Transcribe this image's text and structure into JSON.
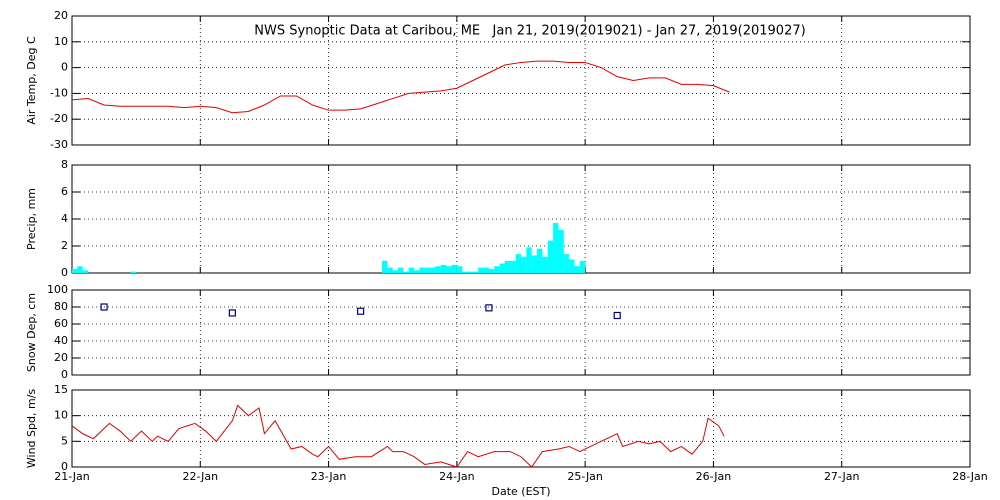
{
  "chart_data": [
    {
      "type": "line",
      "title": "NWS Synoptic Data at Caribou, ME   Jan 21, 2019(2019021) - Jan 27, 2019(2019027)",
      "ylabel": "Air Temp, Deg C",
      "color": "#e00000",
      "x": [
        0,
        3,
        6,
        9,
        12,
        15,
        18,
        21,
        24,
        27,
        30,
        33,
        36,
        39,
        42,
        45,
        48,
        51,
        54,
        57,
        60,
        63,
        66,
        69,
        72,
        75,
        78,
        81,
        84,
        87,
        90,
        93,
        96,
        99,
        102,
        105,
        108,
        111,
        114,
        117,
        120,
        123
      ],
      "values": [
        -12.5,
        -12,
        -14.5,
        -15,
        -15,
        -15,
        -15,
        -15.5,
        -15,
        -15.5,
        -17.5,
        -17,
        -14.5,
        -11,
        -11,
        -14.5,
        -16.5,
        -16.5,
        -16,
        -14,
        -12,
        -10,
        -9.5,
        -9,
        -8,
        -5,
        -2,
        1,
        2,
        2.5,
        2.5,
        2,
        2,
        0,
        -3.5,
        -5,
        -4,
        -4,
        -6.5,
        -6.5,
        -7,
        -9.5
      ],
      "xlim": [
        0,
        168
      ],
      "xticks": [
        0,
        24,
        48,
        72,
        96,
        120,
        144,
        168
      ],
      "ylim": [
        -30,
        20
      ],
      "yticks": [
        -30,
        -20,
        -10,
        0,
        10,
        20
      ],
      "grid": true
    },
    {
      "type": "bar",
      "ylabel": "Precip, mm",
      "color": "#00ffff",
      "x": [
        0,
        1,
        2,
        11,
        58,
        59,
        60,
        61,
        62,
        63,
        64,
        65,
        66,
        67,
        68,
        69,
        70,
        71,
        72,
        73,
        74,
        75,
        76,
        77,
        78,
        79,
        80,
        81,
        82,
        83,
        84,
        85,
        86,
        87,
        88,
        89,
        90,
        91,
        92,
        93,
        94,
        95
      ],
      "values": [
        0.3,
        0.5,
        0.2,
        0.1,
        0.9,
        0.4,
        0.2,
        0.4,
        0.1,
        0.4,
        0.2,
        0.4,
        0.4,
        0.4,
        0.5,
        0.6,
        0.5,
        0.6,
        0.5,
        0.1,
        0.1,
        0.1,
        0.4,
        0.4,
        0.3,
        0.5,
        0.7,
        0.9,
        0.9,
        1.4,
        1.2,
        1.9,
        1.3,
        1.8,
        1.2,
        2.4,
        3.7,
        3.2,
        1.4,
        1.0,
        0.5,
        0.9
      ],
      "xlim": [
        0,
        168
      ],
      "xticks": [
        0,
        24,
        48,
        72,
        96,
        120,
        144,
        168
      ],
      "ylim": [
        0,
        8
      ],
      "yticks": [
        0,
        2,
        4,
        6,
        8
      ],
      "grid": true
    },
    {
      "type": "scatter",
      "ylabel": "Snow Dep, cm",
      "color": "#000080",
      "x": [
        6,
        30,
        54,
        78,
        102
      ],
      "values": [
        80,
        73,
        75,
        79,
        70
      ],
      "xlim": [
        0,
        168
      ],
      "xticks": [
        0,
        24,
        48,
        72,
        96,
        120,
        144,
        168
      ],
      "ylim": [
        0,
        100
      ],
      "yticks": [
        0,
        20,
        40,
        60,
        80,
        100
      ],
      "grid": true
    },
    {
      "type": "line",
      "ylabel": "Wind Spd, m/s",
      "xlabel": "Date (EST)",
      "color": "#e00000",
      "x": [
        0,
        2,
        4,
        7,
        9,
        11,
        13,
        15,
        16,
        18,
        20,
        23,
        25,
        27,
        30,
        31,
        33,
        35,
        36,
        38,
        41,
        43,
        45,
        46,
        48,
        50,
        53,
        56,
        59,
        60,
        62,
        64,
        66,
        69,
        72,
        74,
        76,
        79,
        82,
        84,
        86,
        88,
        91,
        93,
        95,
        97,
        99,
        102,
        103,
        106,
        108,
        110,
        112,
        114,
        116,
        118,
        119,
        121,
        122
      ],
      "values": [
        8,
        6.5,
        5.5,
        8.5,
        7,
        5,
        7,
        5,
        6,
        5,
        7.5,
        8.5,
        7,
        5,
        9,
        12,
        10,
        11.5,
        6.5,
        9,
        3.5,
        4,
        2.5,
        2,
        4,
        1.5,
        2,
        2,
        4,
        3,
        3,
        2,
        0.5,
        1,
        0,
        3,
        2,
        3,
        3,
        2,
        0,
        3,
        3.5,
        4,
        3,
        4,
        5,
        6.5,
        4,
        5,
        4.5,
        5,
        3,
        4,
        2.5,
        5,
        9.5,
        8,
        6
      ],
      "xlim": [
        0,
        168
      ],
      "xticks": [
        {
          "value": 0,
          "label": "21-Jan"
        },
        {
          "value": 24,
          "label": "22-Jan"
        },
        {
          "value": 48,
          "label": "23-Jan"
        },
        {
          "value": 72,
          "label": "24-Jan"
        },
        {
          "value": 96,
          "label": "25-Jan"
        },
        {
          "value": 120,
          "label": "26-Jan"
        },
        {
          "value": 144,
          "label": "27-Jan"
        },
        {
          "value": 168,
          "label": "28-Jan"
        }
      ],
      "ylim": [
        0,
        15
      ],
      "yticks": [
        0,
        5,
        10,
        15
      ],
      "grid": true
    }
  ]
}
